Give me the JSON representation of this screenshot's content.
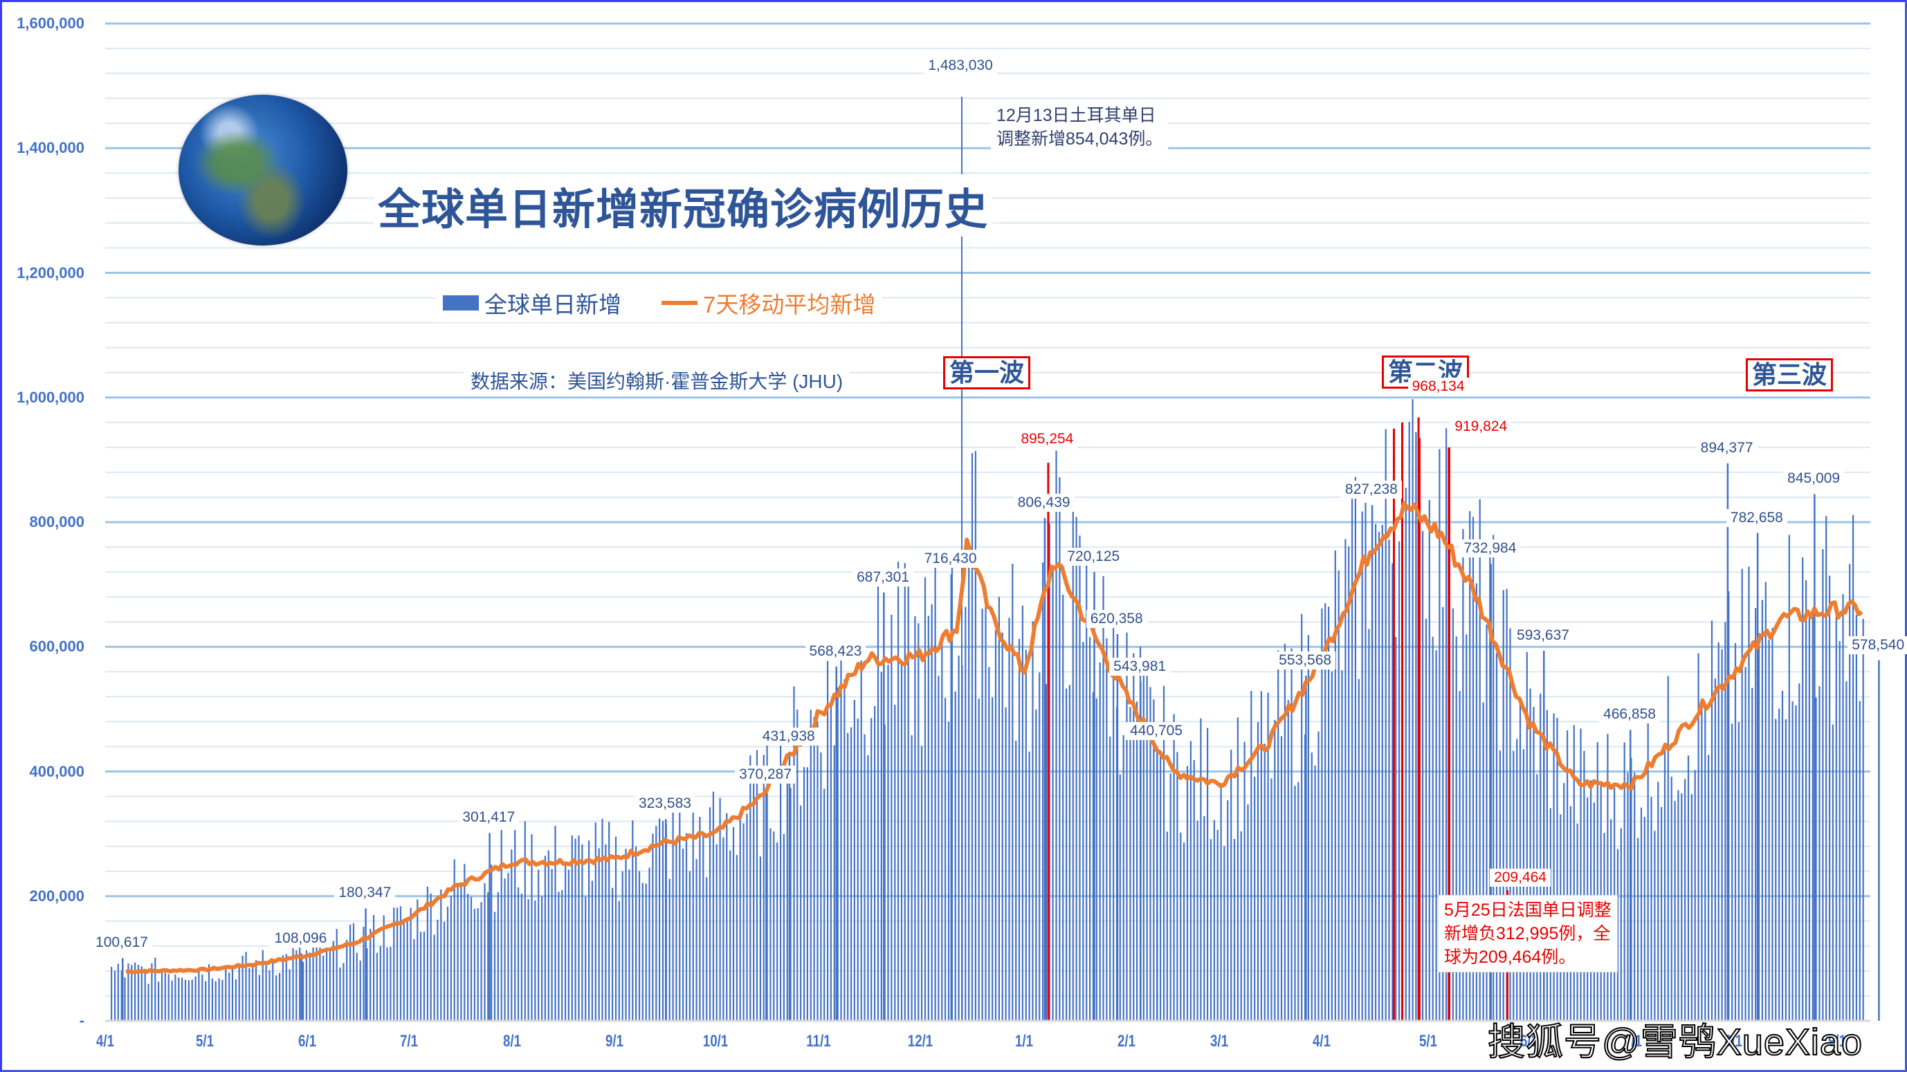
{
  "header": {
    "title": "全球单日新增新冠确诊病例历史",
    "source": "数据来源：美国约翰斯·霍普金斯大学 (JHU)"
  },
  "legend": {
    "bar_label": "全球单日新增",
    "line_label": "7天移动平均新增"
  },
  "waves": [
    {
      "label": "第一波"
    },
    {
      "label": "第二波"
    },
    {
      "label": "第三波"
    }
  ],
  "notes": {
    "turkey": "12月13日土耳其单日\n调整新增854,043例。",
    "france": "5月25日法国单日调整\n新增负312,995例，全\n球为209,464例。"
  },
  "watermark": "搜狐号@雪鸮XueXiao",
  "colors": {
    "bar": "#4472c4",
    "line": "#ed7d31",
    "highlight": "#e80000",
    "title": "#2e5597",
    "gridline": "#dce8f5",
    "gridline_major": "#9dc3e6",
    "frame": "#3a3df5"
  },
  "chart_data": {
    "type": "bar+line",
    "title": "全球单日新增新冠确诊病例历史",
    "subtitle": "数据来源：美国约翰斯·霍普金斯大学 (JHU)",
    "xlabel": "",
    "ylabel": "",
    "ylim": [
      0,
      1600000
    ],
    "yticks": [
      "-",
      "200,000",
      "400,000",
      "600,000",
      "800,000",
      "1,000,000",
      "1,200,000",
      "1,400,000",
      "1,600,000"
    ],
    "xticks": [
      "4/1",
      "5/1",
      "6/1",
      "7/1",
      "8/1",
      "9/1",
      "10/1",
      "11/1",
      "12/1",
      "1/1",
      "2/1",
      "3/1",
      "4/1",
      "5/1",
      "6/1",
      "7/1",
      "8/1",
      "9/1"
    ],
    "x_range": "2020-04-01 to 2021-09",
    "grid": true,
    "legend_position": "top-left",
    "series": [
      {
        "name": "全球单日新增",
        "type": "bar",
        "color": "#4472c4"
      },
      {
        "name": "7天移动平均新增",
        "type": "line",
        "color": "#ed7d31"
      }
    ],
    "seven_day_avg_anchors": [
      {
        "date": "4/1",
        "value": 78000
      },
      {
        "date": "4/15",
        "value": 80000
      },
      {
        "date": "5/1",
        "value": 82000
      },
      {
        "date": "5/15",
        "value": 90000
      },
      {
        "date": "6/1",
        "value": 105000
      },
      {
        "date": "6/15",
        "value": 125000
      },
      {
        "date": "7/1",
        "value": 165000
      },
      {
        "date": "7/15",
        "value": 215000
      },
      {
        "date": "8/1",
        "value": 255000
      },
      {
        "date": "8/15",
        "value": 255000
      },
      {
        "date": "9/1",
        "value": 260000
      },
      {
        "date": "9/15",
        "value": 285000
      },
      {
        "date": "10/1",
        "value": 300000
      },
      {
        "date": "10/15",
        "value": 360000
      },
      {
        "date": "11/1",
        "value": 490000
      },
      {
        "date": "11/15",
        "value": 580000
      },
      {
        "date": "12/1",
        "value": 585000
      },
      {
        "date": "12/12",
        "value": 630000
      },
      {
        "date": "12/15",
        "value": 770000
      },
      {
        "date": "12/22",
        "value": 650000
      },
      {
        "date": "1/1",
        "value": 560000
      },
      {
        "date": "1/10",
        "value": 740000
      },
      {
        "date": "1/20",
        "value": 640000
      },
      {
        "date": "2/1",
        "value": 520000
      },
      {
        "date": "2/15",
        "value": 400000
      },
      {
        "date": "3/1",
        "value": 380000
      },
      {
        "date": "3/15",
        "value": 440000
      },
      {
        "date": "4/1",
        "value": 580000
      },
      {
        "date": "4/15",
        "value": 760000
      },
      {
        "date": "4/25",
        "value": 825000
      },
      {
        "date": "5/5",
        "value": 780000
      },
      {
        "date": "5/15",
        "value": 690000
      },
      {
        "date": "6/1",
        "value": 480000
      },
      {
        "date": "6/15",
        "value": 380000
      },
      {
        "date": "7/1",
        "value": 380000
      },
      {
        "date": "7/15",
        "value": 460000
      },
      {
        "date": "8/1",
        "value": 560000
      },
      {
        "date": "8/15",
        "value": 645000
      },
      {
        "date": "9/1",
        "value": 660000
      }
    ],
    "data_labels": [
      {
        "date": "4/6",
        "value": 100617,
        "text": "100,617"
      },
      {
        "date": "5/30",
        "value": 108096,
        "text": "108,096"
      },
      {
        "date": "6/18",
        "value": 180347,
        "text": "180,347"
      },
      {
        "date": "7/25",
        "value": 301417,
        "text": "301,417"
      },
      {
        "date": "9/16",
        "value": 323583,
        "text": "323,583"
      },
      {
        "date": "10/16",
        "value": 370287,
        "text": "370,287"
      },
      {
        "date": "10/23",
        "value": 431938,
        "text": "431,938"
      },
      {
        "date": "11/6",
        "value": 568423,
        "text": "568,423"
      },
      {
        "date": "11/20",
        "value": 687301,
        "text": "687,301"
      },
      {
        "date": "12/10",
        "value": 716430,
        "text": "716,430"
      },
      {
        "date": "12/13",
        "value": 1483030,
        "text": "1,483,030"
      },
      {
        "date": "1/7",
        "value": 806439,
        "text": "806,439"
      },
      {
        "date": "1/8",
        "value": 895254,
        "text": "895,254",
        "highlight": true
      },
      {
        "date": "1/22",
        "value": 720125,
        "text": "720,125"
      },
      {
        "date": "1/29",
        "value": 620358,
        "text": "620,358"
      },
      {
        "date": "2/5",
        "value": 543981,
        "text": "543,981"
      },
      {
        "date": "2/10",
        "value": 440705,
        "text": "440,705"
      },
      {
        "date": "3/27",
        "value": 553568,
        "text": "553,568"
      },
      {
        "date": "4/15",
        "value": 827238,
        "text": "827,238"
      },
      {
        "date": "4/28",
        "value": 968134,
        "text": "968,134",
        "highlight": true
      },
      {
        "date": "5/7",
        "value": 919824,
        "text": "919,824",
        "highlight": true
      },
      {
        "date": "5/20",
        "value": 732984,
        "text": "732,984"
      },
      {
        "date": "5/25",
        "value": 209464,
        "text": "209,464",
        "highlight": true
      },
      {
        "date": "6/5",
        "value": 593637,
        "text": "593,637"
      },
      {
        "date": "6/30",
        "value": 466858,
        "text": "466,858"
      },
      {
        "date": "7/30",
        "value": 894377,
        "text": "894,377"
      },
      {
        "date": "8/8",
        "value": 782658,
        "text": "782,658"
      },
      {
        "date": "8/25",
        "value": 845009,
        "text": "845,009"
      },
      {
        "date": "9/5",
        "value": 578540,
        "text": "578,540"
      }
    ],
    "annotations": [
      {
        "text": "第一波",
        "near": "12/1"
      },
      {
        "text": "第二波",
        "near": "4/28"
      },
      {
        "text": "第三波",
        "near": "8/20"
      },
      {
        "text": "12月13日土耳其单日调整新增854,043例。"
      },
      {
        "text": "5月25日法国单日调整新增负312,995例，全球为209,464例。"
      }
    ]
  }
}
